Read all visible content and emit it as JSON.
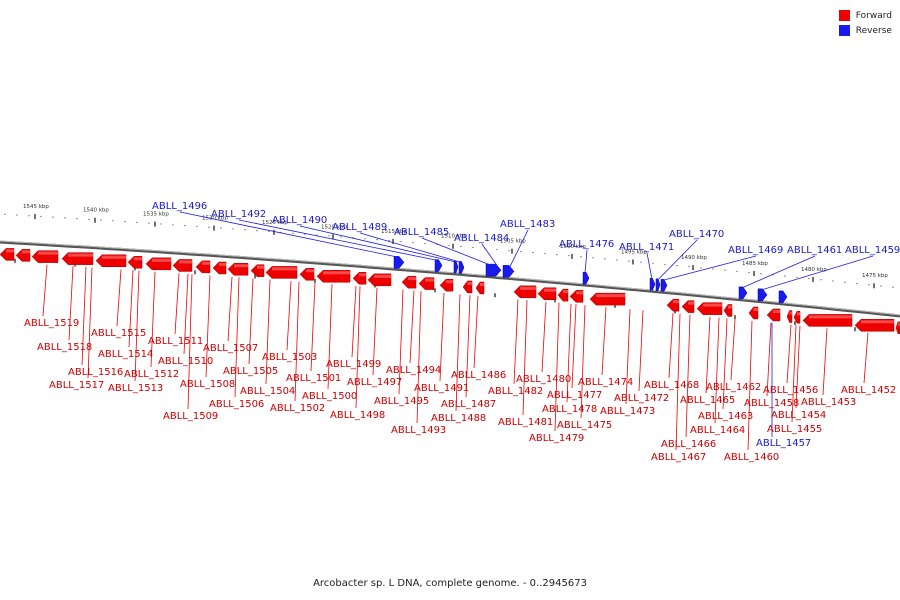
{
  "legend": {
    "forward_label": "Forward",
    "reverse_label": "Reverse",
    "forward_color": "#ee0000",
    "reverse_color": "#1a1aee"
  },
  "caption": "Arcobacter sp. L DNA, complete genome. - 0..2945673",
  "kbp_labels": [
    "1545 kbp",
    "1540 kbp",
    "1535 kbp",
    "1530 kbp",
    "1525 kbp",
    "1520 kbp",
    "1515 kbp",
    "1510 kbp",
    "1505 kbp",
    "1500 kbp",
    "1495 kbp",
    "1490 kbp",
    "1485 kbp",
    "1480 kbp",
    "1475 kbp"
  ],
  "forward_genes": [
    "ABLL_1519",
    "ABLL_1518",
    "ABLL_1517",
    "ABLL_1516",
    "ABLL_1515",
    "ABLL_1514",
    "ABLL_1513",
    "ABLL_1512",
    "ABLL_1511",
    "ABLL_1510",
    "ABLL_1509",
    "ABLL_1508",
    "ABLL_1507",
    "ABLL_1506",
    "ABLL_1505",
    "ABLL_1504",
    "ABLL_1503",
    "ABLL_1502",
    "ABLL_1501",
    "ABLL_1500",
    "ABLL_1499",
    "ABLL_1498",
    "ABLL_1497",
    "ABLL_1495",
    "ABLL_1494",
    "ABLL_1493",
    "ABLL_1491",
    "ABLL_1488",
    "ABLL_1487",
    "ABLL_1486",
    "ABLL_1482",
    "ABLL_1481",
    "ABLL_1480",
    "ABLL_1479",
    "ABLL_1478",
    "ABLL_1477",
    "ABLL_1475",
    "ABLL_1474",
    "ABLL_1473",
    "ABLL_1472",
    "ABLL_1468",
    "ABLL_1467",
    "ABLL_1466",
    "ABLL_1465",
    "ABLL_1464",
    "ABLL_1463",
    "ABLL_1462",
    "ABLL_1460",
    "ABLL_1458",
    "ABLL_1456",
    "ABLL_1455",
    "ABLL_1454",
    "ABLL_1453",
    "ABLL_1452"
  ],
  "reverse_genes": [
    "ABLL_1496",
    "ABLL_1492",
    "ABLL_1490",
    "ABLL_1489",
    "ABLL_1485",
    "ABLL_1484",
    "ABLL_1483",
    "ABLL_1476",
    "ABLL_1471",
    "ABLL_1470",
    "ABLL_1469",
    "ABLL_1461",
    "ABLL_1459",
    "ABLL_1457"
  ]
}
